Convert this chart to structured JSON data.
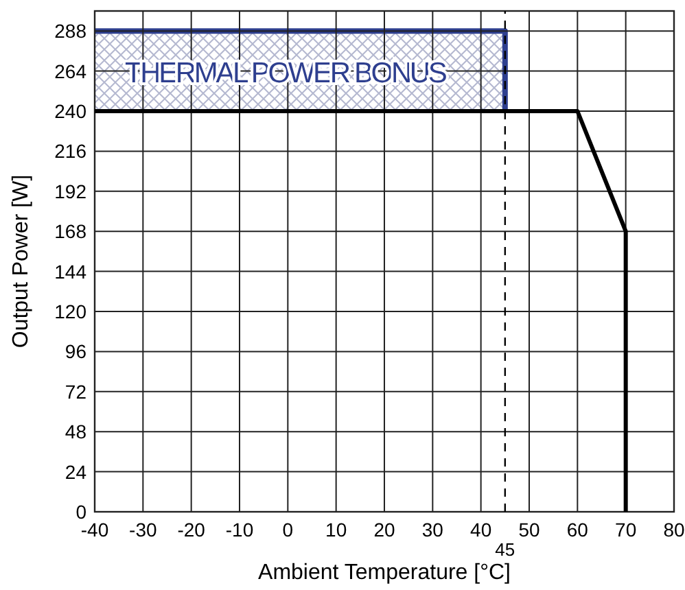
{
  "chart_data": {
    "type": "line",
    "xlabel": "Ambient Temperature [°C]",
    "ylabel": "Output Power [W]",
    "xlim": [
      -40,
      80
    ],
    "xticks": [
      -40,
      -30,
      -20,
      -10,
      0,
      10,
      20,
      30,
      40,
      50,
      60,
      70,
      80
    ],
    "ylim": [
      0,
      300
    ],
    "yticks": [
      0,
      24,
      48,
      72,
      96,
      120,
      144,
      168,
      192,
      216,
      240,
      264,
      288
    ],
    "grid": true,
    "marker": "none",
    "line_style": "solid",
    "series": [
      {
        "name": "THERMAL POWER BONUS",
        "color": "#2e3f8f",
        "x": [
          -40,
          45,
          45
        ],
        "values": [
          288,
          288,
          240
        ],
        "lower": [
          240,
          240,
          240
        ],
        "upper": [
          288,
          288,
          240
        ]
      },
      {
        "color": "#000000",
        "x": [
          -40,
          60,
          70,
          70
        ],
        "values": [
          240,
          240,
          168,
          0
        ]
      }
    ],
    "ref_lines": [
      {
        "axis": "x",
        "value": 45,
        "label": "45",
        "line_style": "dashed",
        "color": "#000000"
      }
    ]
  }
}
